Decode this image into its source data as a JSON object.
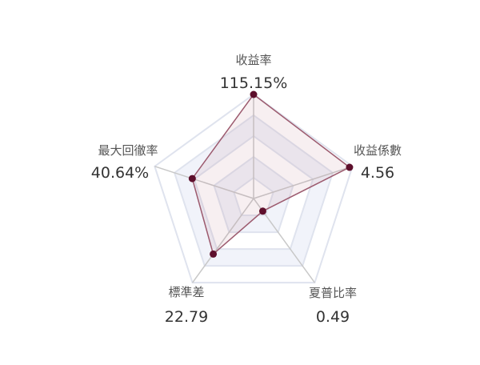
{
  "chart_data": {
    "type": "radar",
    "title": "",
    "indicators": [
      {
        "name": "收益率",
        "value_label": "115.15%",
        "score": 1.0
      },
      {
        "name": "收益係數",
        "value_label": "4.56",
        "score": 0.97
      },
      {
        "name": "夏普比率",
        "value_label": "0.49",
        "score": 0.15
      },
      {
        "name": "標準差",
        "value_label": "22.79",
        "score": 0.66
      },
      {
        "name": "最大回徹率",
        "value_label": "40.64%",
        "score": 0.62
      }
    ],
    "radar_range": [
      0,
      1
    ],
    "ring_levels": 5,
    "colors": {
      "series_line": "#9c5a6e",
      "series_point": "#5e0f2c",
      "series_fill": "rgba(186, 120, 140, 0.12)",
      "ring_line": "#dfe3ee",
      "ring_fill_light": "#ffffff",
      "ring_fill_dark": "#f1f3fa",
      "spoke": "#c8c8c8"
    }
  }
}
